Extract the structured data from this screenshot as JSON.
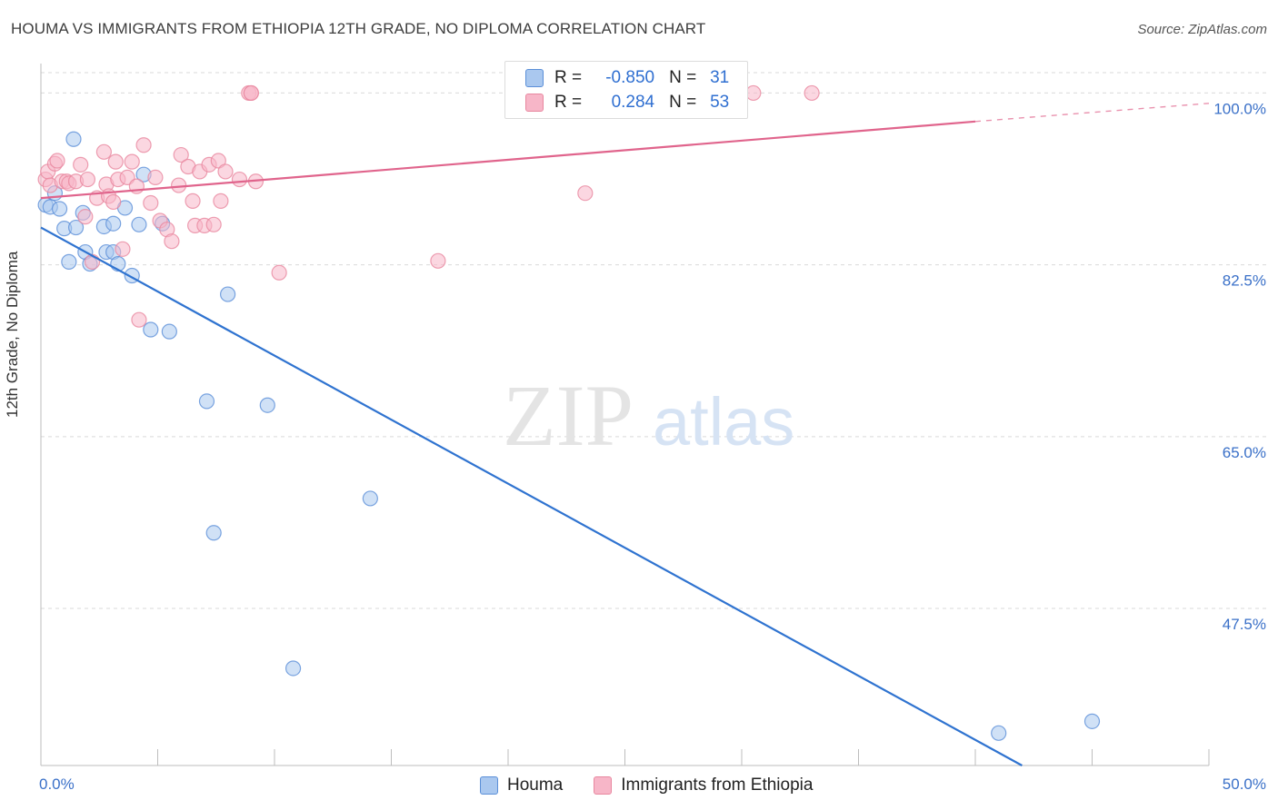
{
  "header": {
    "title": "HOUMA VS IMMIGRANTS FROM ETHIOPIA 12TH GRADE, NO DIPLOMA CORRELATION CHART",
    "source": "Source: ZipAtlas.com"
  },
  "watermark": {
    "zip": "ZIP",
    "atlas": "atlas"
  },
  "legend": {
    "rows": [
      {
        "r_label": "R =",
        "r_value": "-0.850",
        "n_label": "N =",
        "n_value": "31"
      },
      {
        "r_label": "R =",
        "r_value": "0.284",
        "n_label": "N =",
        "n_value": "53"
      }
    ]
  },
  "colors": {
    "houma_fill": "#aac8ef",
    "houma_stroke": "#5b8fd8",
    "houma_line": "#2f73d0",
    "ethiopia_fill": "#f7b6c8",
    "ethiopia_stroke": "#e8879f",
    "ethiopia_line": "#e0648c",
    "grid": "#d9d9d9",
    "axis_label": "#3a70c8"
  },
  "chart_data": {
    "type": "scatter",
    "title": "HOUMA VS IMMIGRANTS FROM ETHIOPIA 12TH GRADE, NO DIPLOMA CORRELATION CHART",
    "ylabel": "12th Grade, No Diploma",
    "xlabel": "",
    "xlim": [
      0,
      50
    ],
    "ylim": [
      31.5,
      103
    ],
    "x_tick_labels": [
      {
        "value": 0,
        "label": "0.0%"
      },
      {
        "value": 50,
        "label": "50.0%"
      }
    ],
    "x_minor_ticks": [
      0,
      5,
      10,
      15,
      20,
      25,
      30,
      35,
      40,
      45,
      50
    ],
    "y_ticks": [
      {
        "value": 100,
        "label": "100.0%"
      },
      {
        "value": 82.5,
        "label": "82.5%"
      },
      {
        "value": 65,
        "label": "65.0%"
      },
      {
        "value": 47.5,
        "label": "47.5%"
      }
    ],
    "grid": true,
    "legend_placement": "top-center",
    "series": [
      {
        "name": "Houma",
        "r": -0.85,
        "n": 31,
        "trend": {
          "x": [
            0,
            42
          ],
          "y": [
            86.3,
            31.5
          ]
        },
        "points": [
          [
            0.2,
            88.6
          ],
          [
            0.4,
            88.4
          ],
          [
            0.6,
            89.8
          ],
          [
            0.8,
            88.2
          ],
          [
            1.0,
            86.2
          ],
          [
            1.2,
            82.8
          ],
          [
            1.4,
            95.3
          ],
          [
            1.5,
            86.3
          ],
          [
            1.8,
            87.8
          ],
          [
            1.9,
            83.8
          ],
          [
            2.1,
            82.6
          ],
          [
            2.7,
            86.4
          ],
          [
            2.8,
            83.8
          ],
          [
            3.1,
            86.7
          ],
          [
            3.1,
            83.8
          ],
          [
            3.3,
            82.6
          ],
          [
            3.6,
            88.3
          ],
          [
            3.9,
            81.4
          ],
          [
            4.2,
            86.6
          ],
          [
            4.4,
            91.7
          ],
          [
            4.7,
            75.9
          ],
          [
            5.2,
            86.7
          ],
          [
            5.5,
            75.7
          ],
          [
            7.1,
            68.6
          ],
          [
            7.4,
            55.2
          ],
          [
            8.0,
            79.5
          ],
          [
            9.7,
            68.2
          ],
          [
            10.8,
            41.4
          ],
          [
            14.1,
            58.7
          ],
          [
            41.0,
            34.8
          ],
          [
            45.0,
            36.0
          ]
        ]
      },
      {
        "name": "Immigrants from Ethiopia",
        "r": 0.284,
        "n": 53,
        "trend": {
          "x": [
            0,
            40
          ],
          "y": [
            89.3,
            97.1
          ]
        },
        "trend_dashed": {
          "x": [
            40,
            50
          ],
          "y": [
            97.1,
            98.95
          ]
        },
        "points": [
          [
            0.2,
            91.2
          ],
          [
            0.3,
            92.0
          ],
          [
            0.4,
            90.6
          ],
          [
            0.6,
            92.8
          ],
          [
            0.7,
            93.1
          ],
          [
            0.9,
            91.0
          ],
          [
            1.1,
            91.0
          ],
          [
            1.2,
            90.8
          ],
          [
            1.5,
            91.0
          ],
          [
            1.7,
            92.7
          ],
          [
            1.9,
            87.4
          ],
          [
            2.0,
            91.2
          ],
          [
            2.2,
            82.8
          ],
          [
            2.4,
            89.3
          ],
          [
            2.7,
            94.0
          ],
          [
            2.8,
            90.7
          ],
          [
            2.9,
            89.5
          ],
          [
            3.1,
            88.9
          ],
          [
            3.2,
            93.0
          ],
          [
            3.3,
            91.2
          ],
          [
            3.5,
            84.1
          ],
          [
            3.7,
            91.4
          ],
          [
            3.9,
            93.0
          ],
          [
            4.1,
            90.5
          ],
          [
            4.2,
            76.9
          ],
          [
            4.4,
            94.7
          ],
          [
            4.7,
            88.8
          ],
          [
            4.9,
            91.4
          ],
          [
            5.1,
            87.0
          ],
          [
            5.4,
            86.1
          ],
          [
            5.6,
            84.9
          ],
          [
            5.9,
            90.6
          ],
          [
            6.0,
            93.7
          ],
          [
            6.3,
            92.5
          ],
          [
            6.5,
            89.0
          ],
          [
            6.6,
            86.5
          ],
          [
            6.8,
            92.0
          ],
          [
            7.0,
            86.5
          ],
          [
            7.2,
            92.7
          ],
          [
            7.4,
            86.6
          ],
          [
            7.6,
            93.1
          ],
          [
            7.7,
            89.0
          ],
          [
            7.9,
            92.0
          ],
          [
            8.5,
            91.2
          ],
          [
            8.9,
            100.0
          ],
          [
            9.0,
            100.0
          ],
          [
            9.0,
            100.0
          ],
          [
            9.2,
            91.0
          ],
          [
            10.2,
            81.7
          ],
          [
            17.0,
            82.9
          ],
          [
            23.3,
            89.8
          ],
          [
            30.5,
            100.0
          ],
          [
            33.0,
            100.0
          ]
        ]
      }
    ]
  },
  "bottom_legend": {
    "items": [
      {
        "label": "Houma"
      },
      {
        "label": "Immigrants from Ethiopia"
      }
    ]
  }
}
